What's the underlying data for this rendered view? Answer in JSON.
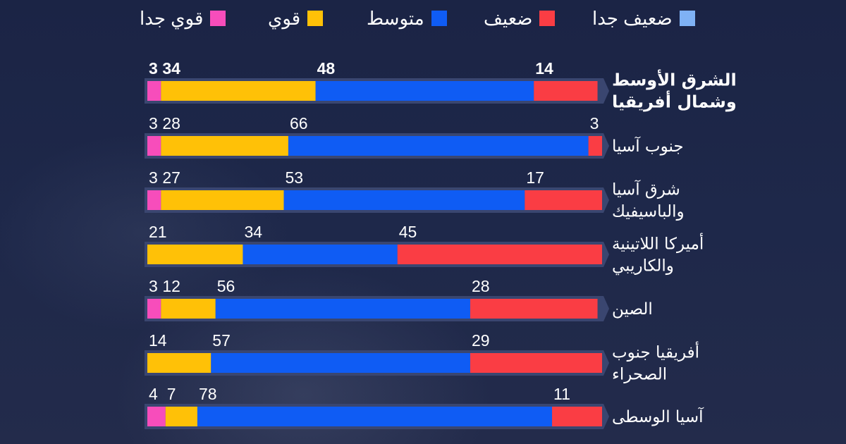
{
  "legend": [
    {
      "label": "ضعيف جدا",
      "color": "#7fb2f5"
    },
    {
      "label": "ضعيف",
      "color": "#fa3d44"
    },
    {
      "label": "متوسط",
      "color": "#0f5cf4"
    },
    {
      "label": "قوي",
      "color": "#ffc107"
    },
    {
      "label": "قوي جدا",
      "color": "#f74dbb"
    }
  ],
  "chart_data": {
    "type": "bar",
    "orientation": "horizontal",
    "stacked": true,
    "categories": [
      "الشرق الأوسط وشمال أفريقيا",
      "جنوب آسيا",
      "شرق آسيا والباسيفيك",
      "أميركا اللاتينية والكاريبي",
      "الصين",
      "أفريقيا جنوب الصحراء",
      "آسيا الوسطى"
    ],
    "series": [
      {
        "name": "قوي جدا",
        "color": "#f74dbb",
        "values": [
          3,
          3,
          3,
          0,
          3,
          0,
          4
        ]
      },
      {
        "name": "قوي",
        "color": "#ffc107",
        "values": [
          34,
          28,
          27,
          21,
          12,
          14,
          7
        ]
      },
      {
        "name": "متوسط",
        "color": "#0f5cf4",
        "values": [
          48,
          66,
          53,
          34,
          56,
          57,
          78
        ]
      },
      {
        "name": "ضعيف",
        "color": "#fa3d44",
        "values": [
          14,
          3,
          17,
          45,
          28,
          29,
          11
        ]
      },
      {
        "name": "ضعيف جدا",
        "color": "#7fb2f5",
        "values": [
          0,
          0,
          0,
          0,
          0,
          0,
          0
        ]
      }
    ],
    "highlighted_category": "الشرق الأوسط وشمال أفريقيا",
    "xlim": [
      0,
      100
    ]
  }
}
